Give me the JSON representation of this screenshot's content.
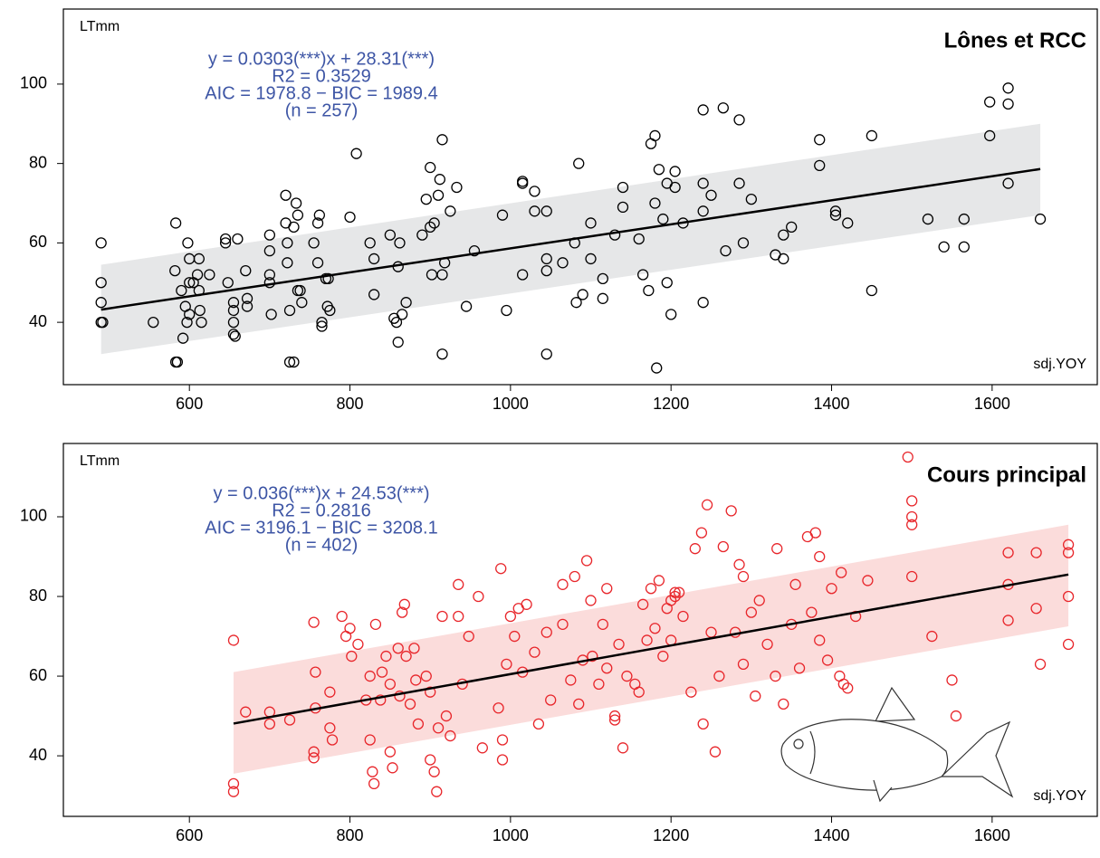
{
  "chart_data": [
    {
      "type": "scatter",
      "title": "Lônes et RCC",
      "ylabel": "LTmm",
      "xlabel": "sdj.YOY",
      "annotation": [
        "y = 0.0303(***)x + 28.31(***)",
        "R2 = 0.3529",
        "AIC = 1978.8 − BIC = 1989.4",
        "(n = 257)"
      ],
      "color": "#000000",
      "band_color": "#e6e7e8",
      "xlim": [
        443,
        1731
      ],
      "ylim": [
        24.3,
        118.9
      ],
      "xticks": [
        600,
        800,
        1000,
        1200,
        1400,
        1600
      ],
      "yticks": [
        40,
        60,
        80,
        100
      ],
      "fit": {
        "x": [
          490,
          1660
        ],
        "values": [
          43.2,
          78.6
        ]
      },
      "band": {
        "x": [
          490,
          1660
        ],
        "lower": [
          32,
          67
        ],
        "upper": [
          54.5,
          90
        ]
      },
      "x": [
        490,
        490,
        490,
        490,
        492,
        555,
        583,
        582,
        583,
        585,
        590,
        592,
        595,
        597,
        598,
        600,
        600,
        600,
        605,
        610,
        612,
        612,
        613,
        615,
        625,
        645,
        645,
        648,
        655,
        655,
        655,
        655,
        657,
        660,
        670,
        672,
        672,
        700,
        700,
        700,
        700,
        702,
        720,
        720,
        722,
        722,
        725,
        725,
        730,
        730,
        733,
        735,
        735,
        738,
        740,
        755,
        760,
        760,
        762,
        765,
        765,
        770,
        772,
        773,
        775,
        800,
        808,
        825,
        830,
        830,
        850,
        855,
        858,
        860,
        860,
        862,
        865,
        870,
        890,
        895,
        900,
        900,
        902,
        905,
        910,
        912,
        915,
        915,
        915,
        918,
        925,
        933,
        945,
        955,
        990,
        995,
        1015,
        1015,
        1015,
        1030,
        1030,
        1045,
        1045,
        1045,
        1045,
        1065,
        1080,
        1082,
        1085,
        1090,
        1100,
        1100,
        1115,
        1115,
        1130,
        1140,
        1140,
        1160,
        1165,
        1172,
        1175,
        1180,
        1180,
        1182,
        1185,
        1190,
        1195,
        1195,
        1200,
        1205,
        1205,
        1215,
        1240,
        1240,
        1240,
        1240,
        1250,
        1265,
        1268,
        1285,
        1285,
        1290,
        1300,
        1330,
        1340,
        1340,
        1350,
        1385,
        1385,
        1405,
        1405,
        1420,
        1450,
        1450,
        1520,
        1540,
        1565,
        1565,
        1597,
        1597,
        1620,
        1620,
        1620,
        1660
      ],
      "values": [
        60,
        50,
        45,
        40,
        40,
        40,
        65,
        53,
        30,
        30,
        48,
        36,
        44,
        40,
        60,
        56,
        50,
        42,
        50,
        52,
        56,
        48,
        43,
        40,
        52,
        61,
        60,
        50,
        45,
        43,
        40,
        37,
        36.5,
        61,
        53,
        46,
        44,
        62,
        58,
        52,
        50,
        42,
        72,
        65,
        60,
        55,
        43,
        30,
        30,
        64,
        70,
        67,
        48,
        48,
        45,
        60,
        65,
        55,
        67,
        40,
        39,
        51,
        44,
        51,
        43,
        66.5,
        82.5,
        60,
        56,
        47,
        62,
        41,
        40,
        35,
        54,
        60,
        42,
        45,
        62,
        71,
        79,
        64,
        52,
        65,
        72,
        76,
        86,
        32,
        52,
        55,
        68,
        74,
        44,
        58,
        67,
        43,
        75,
        52,
        75.5,
        73,
        68,
        68,
        32,
        56,
        53,
        55,
        60,
        45,
        80,
        47,
        65,
        56,
        51,
        46,
        62,
        74,
        69,
        61,
        52,
        48,
        85,
        87,
        70,
        28.5,
        78.5,
        66,
        75,
        50,
        42,
        74,
        78,
        65,
        93.5,
        75,
        68,
        45,
        72,
        94,
        58,
        91,
        75,
        60,
        71,
        57,
        62,
        56,
        64,
        86,
        79.5,
        67,
        68,
        65,
        87,
        48,
        66,
        59,
        59,
        66,
        95.5,
        87,
        99,
        95,
        75,
        66
      ]
    },
    {
      "type": "scatter",
      "title": "Cours principal",
      "ylabel": "LTmm",
      "xlabel": "sdj.YOY",
      "annotation": [
        "y = 0.036(***)x + 24.53(***)",
        "R2 = 0.2816",
        "AIC = 3196.1 − BIC = 3208.1",
        "(n = 402)"
      ],
      "color": "#e8262b",
      "band_color": "#fbdcdb",
      "xlim": [
        443,
        1731
      ],
      "ylim": [
        24.8,
        118.4
      ],
      "xticks": [
        600,
        800,
        1000,
        1200,
        1400,
        1600
      ],
      "yticks": [
        40,
        60,
        80,
        100
      ],
      "fit": {
        "x": [
          655,
          1695
        ],
        "values": [
          48.1,
          85.5
        ]
      },
      "band": {
        "x": [
          655,
          1695
        ],
        "lower": [
          35.5,
          72.5
        ],
        "upper": [
          61,
          98
        ]
      },
      "x": [
        655,
        655,
        655,
        670,
        700,
        700,
        725,
        755,
        757,
        757,
        755,
        755,
        775,
        775,
        778,
        790,
        795,
        800,
        802,
        810,
        820,
        825,
        825,
        828,
        830,
        832,
        838,
        840,
        845,
        850,
        850,
        853,
        860,
        862,
        865,
        868,
        870,
        875,
        880,
        882,
        885,
        895,
        900,
        900,
        905,
        908,
        910,
        915,
        920,
        925,
        935,
        935,
        940,
        948,
        960,
        965,
        985,
        988,
        990,
        990,
        995,
        1000,
        1005,
        1010,
        1015,
        1020,
        1030,
        1035,
        1045,
        1050,
        1065,
        1065,
        1075,
        1080,
        1085,
        1090,
        1095,
        1100,
        1102,
        1110,
        1115,
        1120,
        1120,
        1130,
        1130,
        1135,
        1140,
        1145,
        1155,
        1160,
        1165,
        1170,
        1175,
        1180,
        1185,
        1190,
        1195,
        1200,
        1200,
        1205,
        1205,
        1210,
        1215,
        1225,
        1230,
        1238,
        1240,
        1245,
        1250,
        1255,
        1260,
        1265,
        1275,
        1280,
        1285,
        1290,
        1290,
        1300,
        1305,
        1310,
        1320,
        1330,
        1332,
        1340,
        1350,
        1355,
        1360,
        1370,
        1375,
        1380,
        1385,
        1385,
        1395,
        1400,
        1410,
        1412,
        1415,
        1420,
        1430,
        1445,
        1450,
        1495,
        1500,
        1500,
        1500,
        1500,
        1525,
        1550,
        1555,
        1620,
        1620,
        1620,
        1655,
        1655,
        1660,
        1695,
        1695,
        1695,
        1695
      ],
      "values": [
        69,
        33,
        31,
        51,
        51,
        48,
        49,
        73.5,
        61,
        52,
        41,
        39.5,
        56,
        47,
        44,
        75,
        70,
        72,
        65,
        68,
        54,
        60,
        44,
        36,
        33,
        73,
        54,
        61,
        65,
        58,
        41,
        37,
        67,
        55,
        76,
        78,
        65,
        53,
        67,
        59,
        48,
        60,
        56,
        39,
        36,
        31,
        47,
        75,
        50,
        45,
        75,
        83,
        58,
        70,
        80,
        42,
        52,
        87,
        44,
        39,
        63,
        75,
        70,
        77,
        61,
        78,
        66,
        48,
        71,
        54,
        83,
        73,
        59,
        85,
        53,
        64,
        89,
        79,
        65,
        58,
        73,
        82,
        62,
        50,
        49,
        68,
        42,
        60,
        58,
        56,
        78,
        69,
        82,
        72,
        84,
        65,
        77,
        79,
        69,
        81,
        80,
        81,
        75,
        56,
        92,
        96,
        48,
        103,
        71,
        41,
        60,
        92.5,
        101.5,
        71,
        88,
        85,
        63,
        76,
        55,
        79,
        68,
        60,
        92,
        53,
        73,
        83,
        62,
        95,
        76,
        96,
        90,
        69,
        64,
        82,
        60,
        86,
        58,
        57,
        75,
        84,
        46,
        115,
        104,
        100,
        98,
        85,
        70,
        59,
        50,
        91,
        83,
        74,
        91,
        77,
        63,
        93,
        91,
        80,
        68
      ]
    }
  ]
}
